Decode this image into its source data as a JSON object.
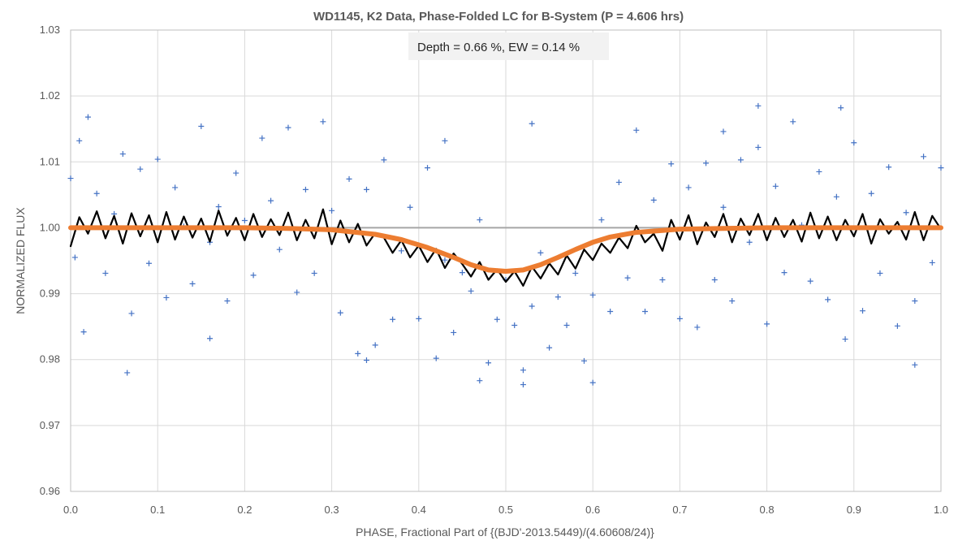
{
  "chart_data": {
    "type": "scatter",
    "title": "WD1145, K2 Data, Phase-Folded LC for B-System (P = 4.606 hrs)",
    "xlabel": "PHASE, Fractional Part of {(BJD'-2013.5449)/(4.60608/24)}",
    "ylabel": "NORMALIZED FLUX",
    "xlim": [
      0.0,
      1.0
    ],
    "ylim": [
      0.96,
      1.03
    ],
    "x_ticks": [
      "0.0",
      "0.1",
      "0.2",
      "0.3",
      "0.4",
      "0.5",
      "0.6",
      "0.7",
      "0.8",
      "0.9",
      "1.0"
    ],
    "y_ticks": [
      "0.96",
      "0.97",
      "0.98",
      "0.99",
      "1.00",
      "1.01",
      "1.02",
      "1.03"
    ],
    "grid": true,
    "annotation": "Depth = 0.66 %, EW = 0.14 %",
    "series": [
      {
        "type": "scatter",
        "marker": "+",
        "color": "#4472c4",
        "x": [
          0.0,
          0.005,
          0.01,
          0.015,
          0.02,
          0.03,
          0.04,
          0.05,
          0.06,
          0.07,
          0.08,
          0.09,
          0.1,
          0.11,
          0.12,
          0.13,
          0.14,
          0.15,
          0.16,
          0.17,
          0.18,
          0.19,
          0.2,
          0.21,
          0.22,
          0.23,
          0.24,
          0.25,
          0.26,
          0.27,
          0.28,
          0.29,
          0.3,
          0.31,
          0.32,
          0.33,
          0.34,
          0.35,
          0.36,
          0.37,
          0.38,
          0.39,
          0.4,
          0.41,
          0.42,
          0.43,
          0.44,
          0.45,
          0.46,
          0.47,
          0.48,
          0.49,
          0.5,
          0.51,
          0.52,
          0.53,
          0.54,
          0.55,
          0.56,
          0.57,
          0.58,
          0.59,
          0.6,
          0.61,
          0.62,
          0.63,
          0.64,
          0.65,
          0.66,
          0.67,
          0.68,
          0.69,
          0.7,
          0.71,
          0.72,
          0.73,
          0.74,
          0.75,
          0.76,
          0.77,
          0.78,
          0.79,
          0.8,
          0.81,
          0.82,
          0.83,
          0.84,
          0.85,
          0.86,
          0.87,
          0.88,
          0.89,
          0.9,
          0.91,
          0.92,
          0.93,
          0.94,
          0.95,
          0.96,
          0.97,
          0.98,
          0.99,
          1.0,
          0.065,
          0.16,
          0.34,
          0.47,
          0.52,
          0.6,
          0.79,
          0.885,
          0.97,
          0.43,
          0.53,
          0.75
        ],
        "y": [
          1.0075,
          0.9955,
          1.0132,
          0.9842,
          1.0168,
          1.0052,
          0.9931,
          1.0021,
          1.0112,
          0.987,
          1.0089,
          0.9946,
          1.0104,
          0.9894,
          1.0061,
          1.0002,
          0.9915,
          1.0154,
          0.9978,
          1.0032,
          0.9889,
          1.0083,
          1.0011,
          0.9928,
          1.0136,
          1.0041,
          0.9967,
          1.0152,
          0.9902,
          1.0058,
          0.9931,
          1.0161,
          1.0026,
          0.9871,
          1.0074,
          0.9809,
          1.0058,
          0.9822,
          1.0103,
          0.9861,
          0.9965,
          1.0031,
          0.9862,
          1.0091,
          0.9802,
          0.9951,
          0.9841,
          0.9932,
          0.9904,
          1.0012,
          0.9795,
          0.9861,
          0.9921,
          0.9852,
          0.9784,
          0.9881,
          0.9962,
          0.9818,
          0.9895,
          0.9852,
          0.9931,
          0.9798,
          0.9898,
          1.0012,
          0.9873,
          1.0069,
          0.9924,
          1.0148,
          0.9873,
          1.0042,
          0.9921,
          1.0097,
          0.9862,
          1.0061,
          0.9849,
          1.0098,
          0.9921,
          1.0031,
          0.9889,
          1.0103,
          0.9978,
          1.0122,
          0.9854,
          1.0063,
          0.9932,
          1.0161,
          1.0004,
          0.9919,
          1.0085,
          0.9891,
          1.0047,
          0.9831,
          1.0129,
          0.9874,
          1.0052,
          0.9931,
          1.0092,
          0.9851,
          1.0023,
          0.9889,
          1.0108,
          0.9947,
          1.0091,
          0.978,
          0.9832,
          0.9799,
          0.9768,
          0.9762,
          0.9765,
          1.0185,
          1.0182,
          0.9792,
          1.0132,
          1.0158,
          1.0146
        ]
      },
      {
        "type": "line",
        "color": "#000000",
        "x": [
          0.0,
          0.01,
          0.02,
          0.03,
          0.04,
          0.05,
          0.06,
          0.07,
          0.08,
          0.09,
          0.1,
          0.11,
          0.12,
          0.13,
          0.14,
          0.15,
          0.16,
          0.17,
          0.18,
          0.19,
          0.2,
          0.21,
          0.22,
          0.23,
          0.24,
          0.25,
          0.26,
          0.27,
          0.28,
          0.29,
          0.3,
          0.31,
          0.32,
          0.33,
          0.34,
          0.35,
          0.36,
          0.37,
          0.38,
          0.39,
          0.4,
          0.41,
          0.42,
          0.43,
          0.44,
          0.45,
          0.46,
          0.47,
          0.48,
          0.49,
          0.5,
          0.51,
          0.52,
          0.53,
          0.54,
          0.55,
          0.56,
          0.57,
          0.58,
          0.59,
          0.6,
          0.61,
          0.62,
          0.63,
          0.64,
          0.65,
          0.66,
          0.67,
          0.68,
          0.69,
          0.7,
          0.71,
          0.72,
          0.73,
          0.74,
          0.75,
          0.76,
          0.77,
          0.78,
          0.79,
          0.8,
          0.81,
          0.82,
          0.83,
          0.84,
          0.85,
          0.86,
          0.87,
          0.88,
          0.89,
          0.9,
          0.91,
          0.92,
          0.93,
          0.94,
          0.95,
          0.96,
          0.97,
          0.98,
          0.99,
          1.0
        ],
        "y": [
          0.9972,
          1.0016,
          0.9991,
          1.0025,
          0.9984,
          1.0018,
          0.9976,
          1.0022,
          0.9987,
          1.0019,
          0.9978,
          1.0024,
          0.9982,
          1.0017,
          0.9985,
          1.0014,
          0.9979,
          1.0026,
          0.9988,
          1.0015,
          0.9981,
          1.0021,
          0.9986,
          1.0013,
          0.9989,
          1.0023,
          0.9981,
          1.0012,
          0.9984,
          1.0028,
          0.9975,
          1.0011,
          0.9978,
          1.0006,
          0.9973,
          0.9992,
          0.9985,
          0.9962,
          0.9981,
          0.9955,
          0.9973,
          0.9948,
          0.9968,
          0.9939,
          0.9961,
          0.9945,
          0.9926,
          0.9948,
          0.9921,
          0.9937,
          0.9918,
          0.9934,
          0.9912,
          0.9941,
          0.9923,
          0.9946,
          0.9929,
          0.9958,
          0.9938,
          0.9967,
          0.9951,
          0.9976,
          0.9962,
          0.9985,
          0.9969,
          1.0003,
          0.9978,
          0.9991,
          0.9965,
          1.0012,
          0.9982,
          1.0019,
          0.9975,
          1.0008,
          0.9986,
          1.0021,
          0.9978,
          1.0014,
          0.9989,
          1.0021,
          0.9981,
          1.0015,
          0.9986,
          1.0012,
          0.9979,
          1.0023,
          0.9984,
          1.0017,
          0.9981,
          1.0012,
          0.9987,
          1.0021,
          0.9976,
          1.0013,
          0.9991,
          1.0009,
          0.9982,
          1.0024,
          0.9981,
          1.0018,
          0.9998
        ]
      },
      {
        "type": "line",
        "color": "#ed7d31",
        "x": [
          0.0,
          0.1,
          0.2,
          0.25,
          0.3,
          0.35,
          0.38,
          0.41,
          0.44,
          0.46,
          0.48,
          0.5,
          0.52,
          0.54,
          0.56,
          0.58,
          0.6,
          0.62,
          0.65,
          0.7,
          0.75,
          0.8,
          0.9,
          1.0
        ],
        "y": [
          1.0,
          1.0,
          1.0,
          0.9999,
          0.9997,
          0.999,
          0.9982,
          0.997,
          0.9955,
          0.9944,
          0.9936,
          0.9934,
          0.9936,
          0.9944,
          0.9955,
          0.9967,
          0.9978,
          0.9986,
          0.9993,
          0.9998,
          0.9999,
          1.0,
          1.0,
          1.0
        ]
      },
      {
        "type": "line",
        "color": "#a6a6a6",
        "x": [
          0.0,
          1.0
        ],
        "y": [
          1.0,
          1.0
        ]
      }
    ]
  }
}
